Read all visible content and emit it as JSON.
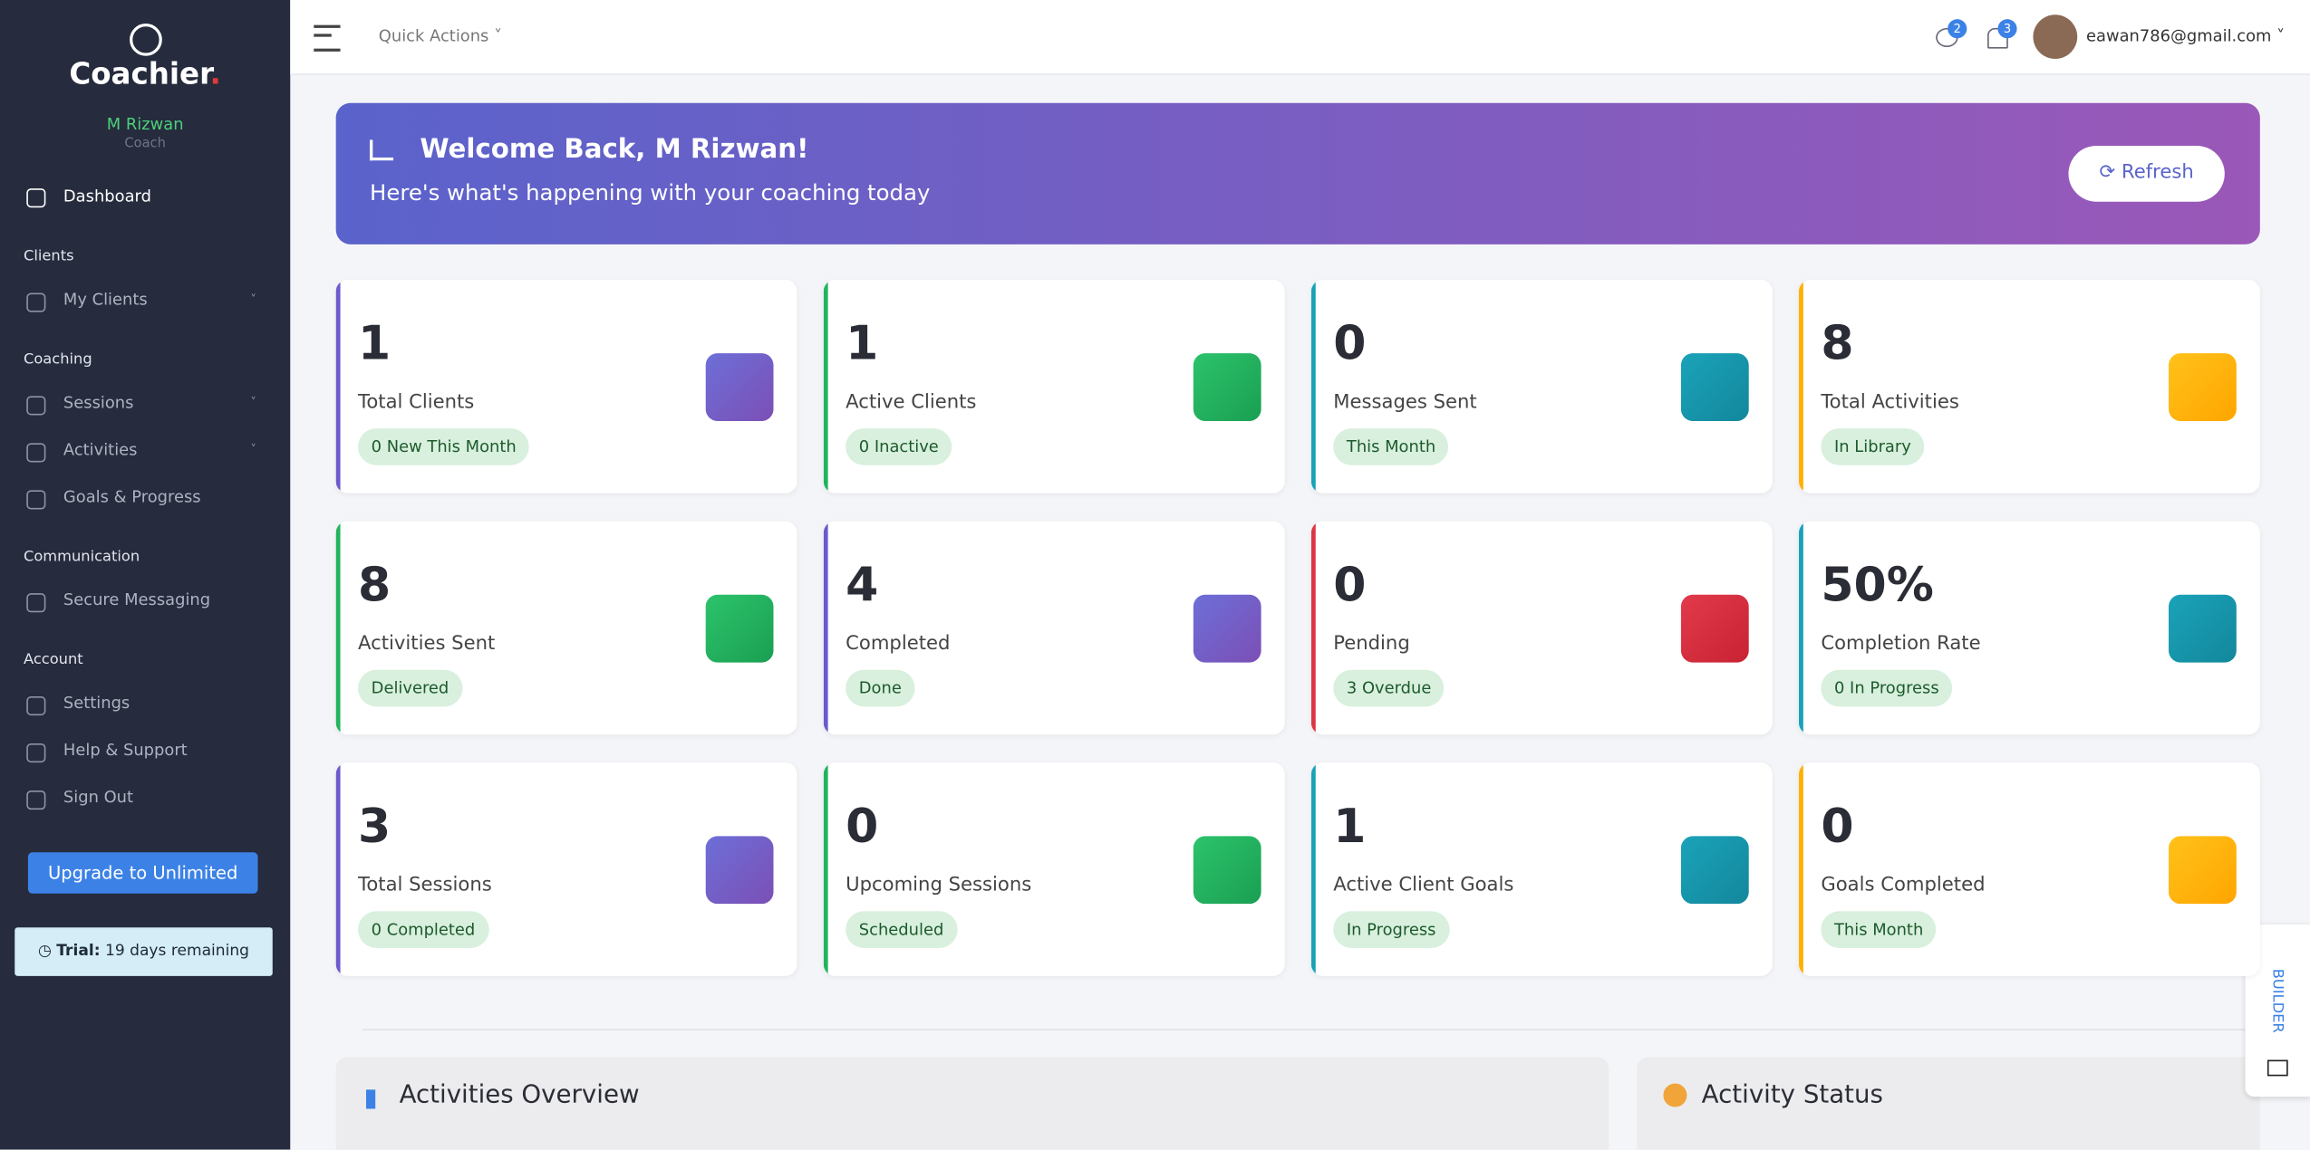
{
  "sidebar": {
    "brand": "Coachier",
    "brand_dot": ".",
    "user_name": "M Rizwan",
    "user_role": "Coach",
    "dashboard": "Dashboard",
    "groups": [
      {
        "heading": "Clients",
        "items": [
          "My Clients"
        ]
      },
      {
        "heading": "Coaching",
        "items": [
          "Sessions",
          "Activities",
          "Goals & Progress"
        ]
      },
      {
        "heading": "Communication",
        "items": [
          "Secure Messaging"
        ]
      },
      {
        "heading": "Account",
        "items": [
          "Settings",
          "Help & Support",
          "Sign Out"
        ]
      }
    ],
    "upgrade": "Upgrade to Unlimited",
    "trial_label": "Trial:",
    "trial_text": "19 days remaining"
  },
  "topbar": {
    "quick_actions": "Quick Actions",
    "messages_count": "2",
    "alerts_count": "3",
    "email": "eawan786@gmail.com"
  },
  "banner": {
    "title": "Welcome Back, M Rizwan!",
    "subtitle": "Here's what's happening with your coaching today",
    "refresh": "Refresh"
  },
  "cards": [
    {
      "value": "1",
      "label": "Total Clients",
      "badge": "0 New This Month"
    },
    {
      "value": "1",
      "label": "Active Clients",
      "badge": "0 Inactive"
    },
    {
      "value": "0",
      "label": "Messages Sent",
      "badge": "This Month"
    },
    {
      "value": "8",
      "label": "Total Activities",
      "badge": "In Library"
    },
    {
      "value": "8",
      "label": "Activities Sent",
      "badge": "Delivered"
    },
    {
      "value": "4",
      "label": "Completed",
      "badge": "Done"
    },
    {
      "value": "0",
      "label": "Pending",
      "badge": "3 Overdue"
    },
    {
      "value": "50%",
      "label": "Completion Rate",
      "badge": "0 In Progress"
    },
    {
      "value": "3",
      "label": "Total Sessions",
      "badge": "0 Completed"
    },
    {
      "value": "0",
      "label": "Upcoming Sessions",
      "badge": "Scheduled"
    },
    {
      "value": "1",
      "label": "Active Client Goals",
      "badge": "In Progress"
    },
    {
      "value": "0",
      "label": "Goals Completed",
      "badge": "This Month"
    }
  ],
  "sections": [
    "Activities Overview",
    "Activity Status"
  ],
  "builder": "BUILDER"
}
